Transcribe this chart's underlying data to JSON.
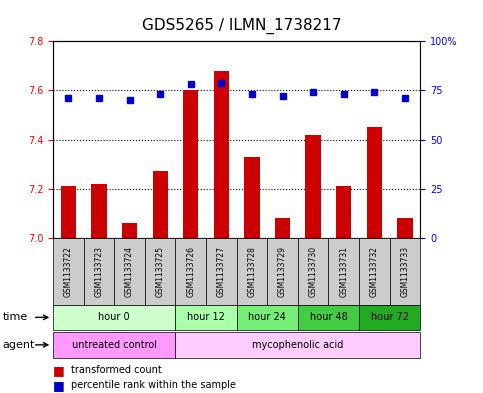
{
  "title": "GDS5265 / ILMN_1738217",
  "samples": [
    "GSM1133722",
    "GSM1133723",
    "GSM1133724",
    "GSM1133725",
    "GSM1133726",
    "GSM1133727",
    "GSM1133728",
    "GSM1133729",
    "GSM1133730",
    "GSM1133731",
    "GSM1133732",
    "GSM1133733"
  ],
  "transformed_counts": [
    7.21,
    7.22,
    7.06,
    7.27,
    7.6,
    7.68,
    7.33,
    7.08,
    7.42,
    7.21,
    7.45,
    7.08
  ],
  "percentile_ranks": [
    71,
    71,
    70,
    73,
    78,
    79,
    73,
    72,
    74,
    73,
    74,
    71
  ],
  "ylim_left": [
    7.0,
    7.8
  ],
  "ylim_right": [
    0,
    100
  ],
  "yticks_left": [
    7.0,
    7.2,
    7.4,
    7.6,
    7.8
  ],
  "yticks_right": [
    0,
    25,
    50,
    75,
    100
  ],
  "bar_color": "#CC0000",
  "dot_color": "#0000CC",
  "time_groups": [
    {
      "label": "hour 0",
      "start": 0,
      "end": 4,
      "color": "#CCFFCC"
    },
    {
      "label": "hour 12",
      "start": 4,
      "end": 6,
      "color": "#AAFFAA"
    },
    {
      "label": "hour 24",
      "start": 6,
      "end": 8,
      "color": "#77EE77"
    },
    {
      "label": "hour 48",
      "start": 8,
      "end": 10,
      "color": "#44CC44"
    },
    {
      "label": "hour 72",
      "start": 10,
      "end": 12,
      "color": "#22AA22"
    }
  ],
  "agent_groups": [
    {
      "label": "untreated control",
      "start": 0,
      "end": 4,
      "color": "#FF99FF"
    },
    {
      "label": "mycophenolic acid",
      "start": 4,
      "end": 12,
      "color": "#FFCCFF"
    }
  ],
  "legend_bar_label": "transformed count",
  "legend_dot_label": "percentile rank within the sample",
  "label_time": "time",
  "label_agent": "agent",
  "bg_color": "#FFFFFF",
  "sample_bg_color": "#CCCCCC",
  "grid_color": "#000000",
  "title_fontsize": 11,
  "tick_fontsize": 7,
  "row_label_fontsize": 8,
  "cell_fontsize": 7,
  "sample_fontsize": 5.5
}
